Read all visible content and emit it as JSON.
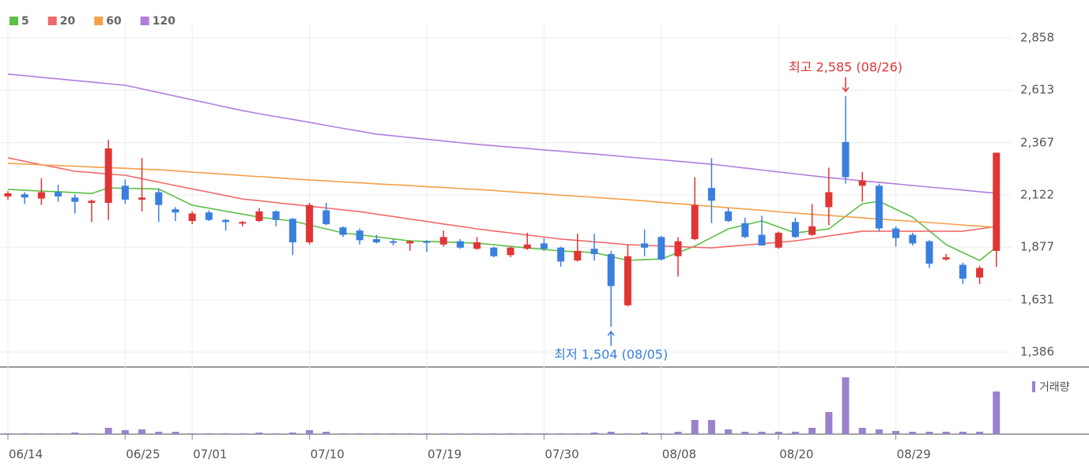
{
  "chart_data": {
    "type": "candlestick",
    "categories": [
      "06/14",
      null,
      null,
      null,
      null,
      null,
      null,
      "06/25",
      null,
      null,
      null,
      "07/01",
      null,
      null,
      null,
      null,
      null,
      null,
      "07/10",
      null,
      null,
      null,
      null,
      null,
      null,
      "07/19",
      null,
      null,
      null,
      null,
      null,
      null,
      "07/30",
      null,
      null,
      null,
      null,
      null,
      null,
      "08/08",
      null,
      null,
      null,
      null,
      null,
      null,
      "08/20",
      null,
      null,
      null,
      null,
      null,
      null,
      "08/29",
      null,
      null,
      null,
      null,
      null,
      null
    ],
    "open": [
      2115,
      2125,
      2105,
      2135,
      2110,
      2085,
      2085,
      2165,
      2100,
      2135,
      2055,
      2000,
      2040,
      2005,
      1990,
      2000,
      2045,
      2010,
      1900,
      2050,
      1970,
      1955,
      1915,
      1905,
      1895,
      1905,
      1890,
      1905,
      1870,
      1875,
      1840,
      1870,
      1895,
      1875,
      1815,
      1870,
      1845,
      1605,
      1895,
      1925,
      1835,
      1915,
      2155,
      2045,
      1990,
      1935,
      1875,
      1995,
      1935,
      2065,
      2370,
      2165,
      2165,
      1965,
      1935,
      1905,
      1820,
      1795,
      1735,
      1860
    ],
    "high": [
      2140,
      2135,
      2200,
      2170,
      2125,
      2100,
      2380,
      2195,
      2295,
      2150,
      2065,
      2045,
      2050,
      2010,
      2000,
      2060,
      2050,
      2015,
      2085,
      2085,
      1975,
      1965,
      1935,
      1915,
      1910,
      1910,
      1955,
      1915,
      1925,
      1880,
      1880,
      1945,
      1920,
      1880,
      1940,
      1940,
      1860,
      1890,
      1960,
      1930,
      1925,
      2205,
      2295,
      2060,
      2015,
      2025,
      1950,
      2015,
      2080,
      2250,
      2585,
      2230,
      2175,
      1975,
      1945,
      1910,
      1845,
      1805,
      1790,
      2320
    ],
    "low": [
      2100,
      2080,
      2075,
      2090,
      2035,
      1995,
      2005,
      2080,
      2045,
      1995,
      2000,
      1985,
      2000,
      1955,
      1975,
      1995,
      1975,
      1840,
      1890,
      1980,
      1925,
      1890,
      1895,
      1885,
      1860,
      1855,
      1880,
      1870,
      1865,
      1830,
      1830,
      1865,
      1860,
      1785,
      1810,
      1815,
      1504,
      1600,
      1835,
      1815,
      1740,
      1910,
      1990,
      1995,
      1920,
      1885,
      1870,
      1920,
      1930,
      1980,
      2175,
      2090,
      1950,
      1880,
      1885,
      1780,
      1815,
      1705,
      1705,
      1785
    ],
    "close": [
      2130,
      2110,
      2135,
      2115,
      2090,
      2095,
      2340,
      2100,
      2110,
      2075,
      2040,
      2035,
      2005,
      1995,
      1995,
      2045,
      2005,
      1900,
      2075,
      1985,
      1935,
      1910,
      1900,
      1900,
      1905,
      1900,
      1925,
      1875,
      1900,
      1835,
      1875,
      1890,
      1870,
      1810,
      1860,
      1845,
      1695,
      1835,
      1875,
      1820,
      1905,
      2075,
      2095,
      2000,
      1925,
      1885,
      1945,
      1925,
      1975,
      2135,
      2205,
      2190,
      1965,
      1920,
      1895,
      1800,
      1830,
      1730,
      1780,
      2320
    ],
    "up_color": "#e03535",
    "down_color": "#3a7fdf",
    "series": [
      {
        "name": "5",
        "color": "#5cbf45",
        "values": [
          2148,
          2144,
          2140,
          2137,
          2133,
          2129,
          2155,
          2153,
          2152,
          2150,
          2112,
          2074,
          2060,
          2046,
          2032,
          2018,
          2009,
          2000,
          1981,
          1963,
          1944,
          1935,
          1926,
          1916,
          1907,
          1904,
          1902,
          1899,
          1896,
          1889,
          1881,
          1874,
          1867,
          1859,
          1856,
          1852,
          1834,
          1815,
          1819,
          1822,
          1852,
          1882,
          1923,
          1963,
          1982,
          2000,
          1972,
          1944,
          1954,
          1963,
          2022,
          2081,
          2092,
          2055,
          2018,
          1954,
          1889,
          1852,
          1815,
          1878
        ]
      },
      {
        "name": "20",
        "color": "#f06a6a",
        "values": [
          2296,
          2280,
          2264,
          2249,
          2233,
          2227,
          2220,
          2214,
          2198,
          2182,
          2166,
          2150,
          2135,
          2119,
          2103,
          2095,
          2086,
          2078,
          2069,
          2061,
          2052,
          2044,
          2032,
          2021,
          2009,
          1998,
          1986,
          1975,
          1963,
          1953,
          1944,
          1934,
          1925,
          1915,
          1909,
          1902,
          1896,
          1889,
          1886,
          1883,
          1880,
          1877,
          1874,
          1881,
          1887,
          1894,
          1900,
          1907,
          1918,
          1930,
          1941,
          1952,
          1952,
          1952,
          1952,
          1952,
          1952,
          1952,
          1963,
          1974
        ]
      },
      {
        "name": "60",
        "color": "#f5a04a",
        "values": [
          2270,
          2267,
          2263,
          2260,
          2257,
          2253,
          2250,
          2247,
          2243,
          2240,
          2235,
          2229,
          2224,
          2219,
          2213,
          2208,
          2203,
          2197,
          2192,
          2188,
          2183,
          2179,
          2174,
          2170,
          2166,
          2161,
          2157,
          2152,
          2148,
          2143,
          2137,
          2132,
          2127,
          2121,
          2116,
          2111,
          2105,
          2100,
          2094,
          2087,
          2081,
          2075,
          2068,
          2062,
          2056,
          2050,
          2043,
          2037,
          2031,
          2026,
          2020,
          2015,
          2009,
          2004,
          1998,
          1993,
          1987,
          1981,
          1976,
          1970
        ]
      },
      {
        "name": "120",
        "color": "#b07fdc",
        "values": [
          2688,
          2681,
          2673,
          2666,
          2658,
          2651,
          2643,
          2636,
          2619,
          2602,
          2585,
          2568,
          2551,
          2534,
          2517,
          2503,
          2489,
          2476,
          2462,
          2448,
          2434,
          2421,
          2407,
          2399,
          2391,
          2383,
          2375,
          2367,
          2359,
          2353,
          2346,
          2340,
          2333,
          2327,
          2320,
          2314,
          2307,
          2300,
          2293,
          2287,
          2280,
          2273,
          2266,
          2257,
          2248,
          2239,
          2230,
          2221,
          2212,
          2203,
          2196,
          2188,
          2181,
          2174,
          2166,
          2159,
          2152,
          2145,
          2137,
          2130
        ]
      }
    ],
    "ylim": [
      1386,
      2858
    ],
    "yticks": [
      {
        "value": 1386,
        "label": "1,386"
      },
      {
        "value": 1631,
        "label": "1,631"
      },
      {
        "value": 1877,
        "label": "1,877"
      },
      {
        "value": 2122,
        "label": "2,122"
      },
      {
        "value": 2367,
        "label": "2,367"
      },
      {
        "value": 2613,
        "label": "2,613"
      },
      {
        "value": 2858,
        "label": "2,858"
      }
    ],
    "grid": true,
    "annotations": {
      "high": "최고 2,585 (08/26)",
      "low": "최저 1,504 (08/05)"
    },
    "volume": {
      "name": "거래량",
      "color": "#9b82cc",
      "ylim": [
        0,
        72
      ],
      "values": [
        1,
        1,
        1,
        1,
        2,
        1,
        8,
        5,
        6,
        3,
        3,
        1,
        1,
        1,
        1,
        2,
        1,
        2,
        5,
        3,
        1,
        1,
        1,
        1,
        1,
        1,
        1,
        1,
        1,
        1,
        1,
        1,
        1,
        1,
        1,
        2,
        3,
        1,
        2,
        1,
        3,
        18,
        18,
        6,
        3,
        3,
        3,
        3,
        8,
        28,
        72,
        8,
        6,
        4,
        3,
        3,
        3,
        3,
        3,
        54
      ]
    }
  }
}
